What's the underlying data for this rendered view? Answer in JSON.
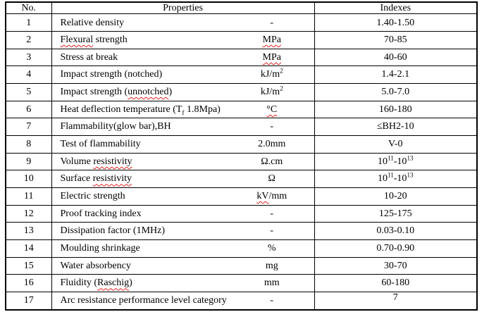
{
  "header": {
    "no": "No.",
    "properties": "Properties",
    "indexes": "Indexes"
  },
  "rows": [
    {
      "no": "1",
      "name": [
        {
          "t": "Relative density"
        }
      ],
      "unit": [
        {
          "t": "-"
        }
      ],
      "index": [
        {
          "t": "1.40-1.50"
        }
      ]
    },
    {
      "no": "2",
      "name": [
        {
          "t": "Flexural",
          "sq": true
        },
        {
          "t": " strength"
        }
      ],
      "unit": [
        {
          "t": "MPa",
          "sq": true
        }
      ],
      "index": [
        {
          "t": "70-85"
        }
      ]
    },
    {
      "no": "3",
      "name": [
        {
          "t": "Stress at break"
        }
      ],
      "unit": [
        {
          "t": "MPa",
          "sq": true
        }
      ],
      "index": [
        {
          "t": "40-60"
        }
      ]
    },
    {
      "no": "4",
      "name": [
        {
          "t": "Impact strength (notched)"
        }
      ],
      "unit": [
        {
          "t": "kJ/m"
        },
        {
          "t": "2",
          "sup": true
        }
      ],
      "index": [
        {
          "t": "1.4-2.1"
        }
      ]
    },
    {
      "no": "5",
      "name": [
        {
          "t": "Impact strength ("
        },
        {
          "t": "unnotched",
          "sq": true
        },
        {
          "t": ")"
        }
      ],
      "unit": [
        {
          "t": "kJ/m"
        },
        {
          "t": "2",
          "sup": true
        }
      ],
      "index": [
        {
          "t": "5.0-7.0"
        }
      ]
    },
    {
      "no": "6",
      "name": [
        {
          "t": "Heat deflection temperature (T"
        },
        {
          "t": "f",
          "sub": true,
          "sq": true
        },
        {
          "t": " 1.8Mpa)"
        }
      ],
      "unit": [
        {
          "t": "°C",
          "sq": true
        }
      ],
      "index": [
        {
          "t": "160-180"
        }
      ]
    },
    {
      "no": "7",
      "name": [
        {
          "t": "Flammability(glow bar),BH"
        }
      ],
      "unit": [
        {
          "t": "-"
        }
      ],
      "index": [
        {
          "t": "≤BH2-10"
        }
      ]
    },
    {
      "no": "8",
      "name": [
        {
          "t": "Test of flammability"
        }
      ],
      "unit": [
        {
          "t": "2.0mm"
        }
      ],
      "index": [
        {
          "t": "V-0"
        }
      ]
    },
    {
      "no": "9",
      "name": [
        {
          "t": "Volume "
        },
        {
          "t": "resistivity",
          "sq": true
        }
      ],
      "unit": [
        {
          "t": "Ω.cm"
        }
      ],
      "index": [
        {
          "t": "10"
        },
        {
          "t": "11",
          "sup": true
        },
        {
          "t": "-10"
        },
        {
          "t": "13",
          "sup": true
        }
      ]
    },
    {
      "no": "10",
      "name": [
        {
          "t": "Surface "
        },
        {
          "t": "resistivity",
          "sq": true
        }
      ],
      "unit": [
        {
          "t": "Ω"
        }
      ],
      "index": [
        {
          "t": "10"
        },
        {
          "t": "11",
          "sup": true
        },
        {
          "t": "-10"
        },
        {
          "t": "13",
          "sup": true
        }
      ]
    },
    {
      "no": "11",
      "name": [
        {
          "t": "Electric strength"
        }
      ],
      "unit": [
        {
          "t": "kV",
          "sq": true
        },
        {
          "t": "/mm"
        }
      ],
      "index": [
        {
          "t": "10-20"
        }
      ]
    },
    {
      "no": "12",
      "name": [
        {
          "t": "Proof tracking index"
        }
      ],
      "unit": [
        {
          "t": "-"
        }
      ],
      "index": [
        {
          "t": "125-175"
        }
      ]
    },
    {
      "no": "13",
      "name": [
        {
          "t": "Dissipation factor (1MHz)"
        }
      ],
      "unit": [
        {
          "t": "-"
        }
      ],
      "index": [
        {
          "t": "0.03-0.10"
        }
      ]
    },
    {
      "no": "14",
      "name": [
        {
          "t": "Moulding shrinkage"
        }
      ],
      "unit": [
        {
          "t": "%"
        }
      ],
      "index": [
        {
          "t": "0.70-0.90"
        }
      ]
    },
    {
      "no": "15",
      "name": [
        {
          "t": "Water absorbency"
        }
      ],
      "unit": [
        {
          "t": "mg"
        }
      ],
      "index": [
        {
          "t": "30-70"
        }
      ]
    },
    {
      "no": "16",
      "name": [
        {
          "t": "Fluidity ("
        },
        {
          "t": "Raschig",
          "sq": true
        },
        {
          "t": ")"
        }
      ],
      "unit": [
        {
          "t": "mm"
        }
      ],
      "index": [
        {
          "t": "60-180"
        }
      ]
    },
    {
      "no": "17",
      "name": [
        {
          "t": "Arc resistance performance level category"
        }
      ],
      "unit": [
        {
          "t": "-"
        }
      ],
      "index": [
        {
          "t": "7"
        }
      ]
    }
  ],
  "colors": {
    "border": "#000000",
    "text": "#000000",
    "squiggle_underline": "#e02020",
    "background": "#ffffff"
  }
}
